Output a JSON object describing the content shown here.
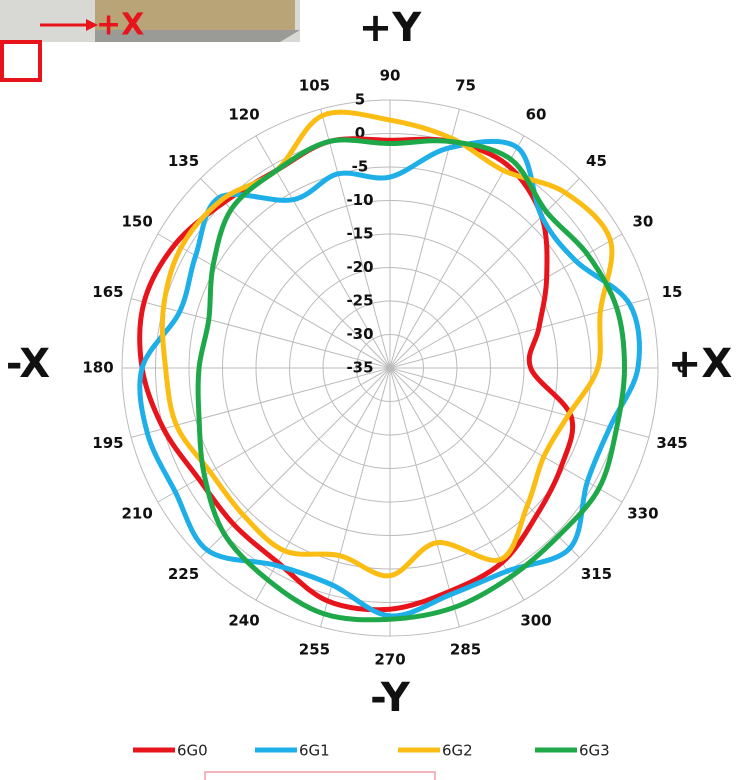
{
  "inset_label": "+X",
  "chart_data": {
    "type": "polar",
    "axis_labels": {
      "top": "+Y",
      "bottom": "-Y",
      "left": "-X",
      "right": "+X"
    },
    "theta": [
      0,
      15,
      30,
      45,
      60,
      75,
      90,
      105,
      120,
      135,
      150,
      165,
      180,
      195,
      210,
      225,
      240,
      255,
      270,
      285,
      300,
      315,
      330,
      345
    ],
    "rlim": [
      -35,
      5
    ],
    "rticks": [
      -35,
      -30,
      -25,
      -20,
      -15,
      -10,
      -5,
      0,
      5
    ],
    "grid": true,
    "series": [
      {
        "name": "6G0",
        "color": "#e8141b",
        "values": [
          -14,
          -12,
          -8,
          -3,
          0,
          0,
          -1,
          0,
          -1,
          0,
          2,
          3,
          2,
          0,
          -2,
          -2,
          -1.5,
          1,
          1,
          -0.5,
          -1.5,
          -4,
          -5.5,
          -7
        ]
      },
      {
        "name": "6G1",
        "color": "#1eaee8",
        "values": [
          2,
          2,
          -3,
          -3,
          3,
          -1,
          -6.5,
          -5,
          -6,
          1,
          -1.5,
          -2.5,
          2,
          2.5,
          2,
          3.5,
          -1,
          -1.5,
          2,
          0,
          0,
          3,
          -1,
          -1
        ]
      },
      {
        "name": "6G2",
        "color": "#fbbd14",
        "values": [
          -4,
          -2.5,
          3,
          2,
          -1,
          0.5,
          2,
          4,
          -1,
          0.5,
          1,
          0,
          -1.5,
          -2,
          -4,
          -4,
          -3.5,
          -6,
          -4,
          -8,
          -2,
          -6,
          -8.5,
          -7.5
        ]
      },
      {
        "name": "6G3",
        "color": "#1ea84a",
        "values": [
          0,
          0,
          -1,
          -2,
          1,
          0,
          -1.5,
          0,
          -1,
          -1.5,
          -4.5,
          -7,
          -6.5,
          -5.5,
          -3,
          0,
          1.5,
          3,
          2.5,
          2,
          1,
          0.5,
          1,
          0
        ]
      }
    ]
  }
}
